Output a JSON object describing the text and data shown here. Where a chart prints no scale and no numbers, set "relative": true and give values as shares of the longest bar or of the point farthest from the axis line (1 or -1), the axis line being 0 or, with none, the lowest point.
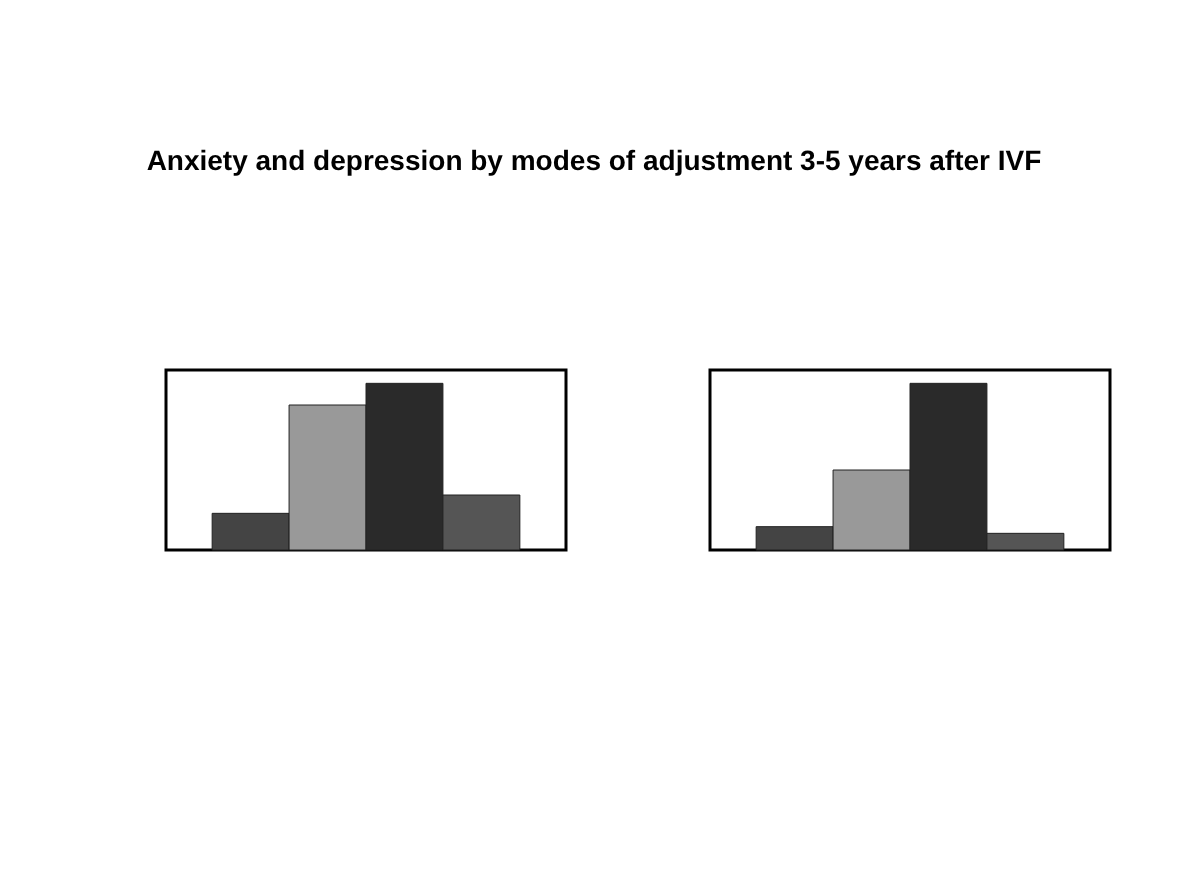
{
  "chart_data": [
    {
      "type": "bar",
      "title": "Anxiety and depression by modes of adjustment 3-5 years after IVF",
      "relative": true,
      "categories": [
        null,
        null,
        null,
        null
      ],
      "values": [
        0.22,
        0.87,
        1,
        0.33
      ],
      "colors": [
        "#444444",
        "#999999",
        "#2a2a2a",
        "#555555"
      ]
    },
    {
      "type": "bar",
      "relative": true,
      "categories": [
        null,
        null,
        null,
        null
      ],
      "values": [
        0.14,
        0.48,
        1,
        0.1
      ],
      "colors": [
        "#444444",
        "#999999",
        "#2a2a2a",
        "#555555"
      ]
    }
  ]
}
